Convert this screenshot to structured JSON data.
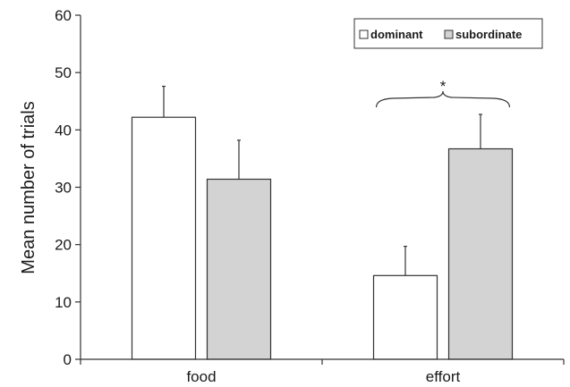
{
  "chart_data": {
    "type": "bar",
    "categories": [
      "food",
      "effort"
    ],
    "series": [
      {
        "name": "dominant",
        "values": [
          42.2,
          14.6
        ],
        "errors": [
          5.4,
          5.1
        ],
        "color": "#ffffff"
      },
      {
        "name": "subordinate",
        "values": [
          31.4,
          36.7
        ],
        "errors": [
          6.8,
          6.0
        ],
        "color": "#d3d3d3"
      }
    ],
    "ylabel": "Mean number of trials",
    "xlabel": "",
    "ylim": [
      0,
      60
    ],
    "yticks": [
      0,
      10,
      20,
      30,
      40,
      50,
      60
    ],
    "legend_position": "top-right",
    "grid": false,
    "annotation": {
      "text": "*",
      "category": "effort",
      "meaning": "brace spanning both bars"
    }
  }
}
